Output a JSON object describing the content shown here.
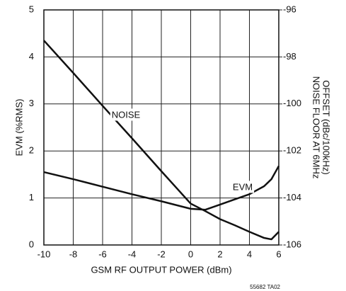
{
  "chart_data": {
    "type": "line",
    "xlabel": "GSM RF OUTPUT POWER (dBm)",
    "ylabel": "EVM (%RMS)",
    "y2label": [
      "NOISE FLOOR AT 6MHz",
      "OFFSET (dBc/100kHz)"
    ],
    "footnote": "55682 TA02",
    "annotations": [
      "NOISE",
      "EVM"
    ],
    "x": [
      -10,
      -8,
      -6,
      -4,
      -2,
      0,
      1,
      2,
      3,
      4,
      5,
      5.5,
      6
    ],
    "series": [
      {
        "name": "EVM",
        "color": "#111111",
        "values": [
          1.55,
          1.4,
          1.24,
          1.08,
          0.93,
          0.77,
          0.75,
          0.86,
          0.97,
          1.08,
          1.25,
          1.4,
          1.68
        ]
      },
      {
        "name": "NOISE",
        "color": "#111111",
        "axis": "y2",
        "values": [
          -97.3,
          -98.68,
          -100.08,
          -101.46,
          -102.86,
          -104.24,
          -104.56,
          -104.9,
          -105.16,
          -105.44,
          -105.7,
          -105.76,
          -105.44
        ]
      }
    ],
    "xlim": [
      -10,
      6
    ],
    "xticks": [
      -10,
      -8,
      -6,
      -4,
      -2,
      0,
      2,
      4,
      6
    ],
    "ylim": [
      0,
      5
    ],
    "yticks": [
      0,
      1,
      2,
      3,
      4,
      5
    ],
    "y2lim": [
      -106,
      -96
    ],
    "y2ticks": [
      -106,
      -104,
      -102,
      -100,
      -98,
      -96
    ],
    "grid": true
  }
}
